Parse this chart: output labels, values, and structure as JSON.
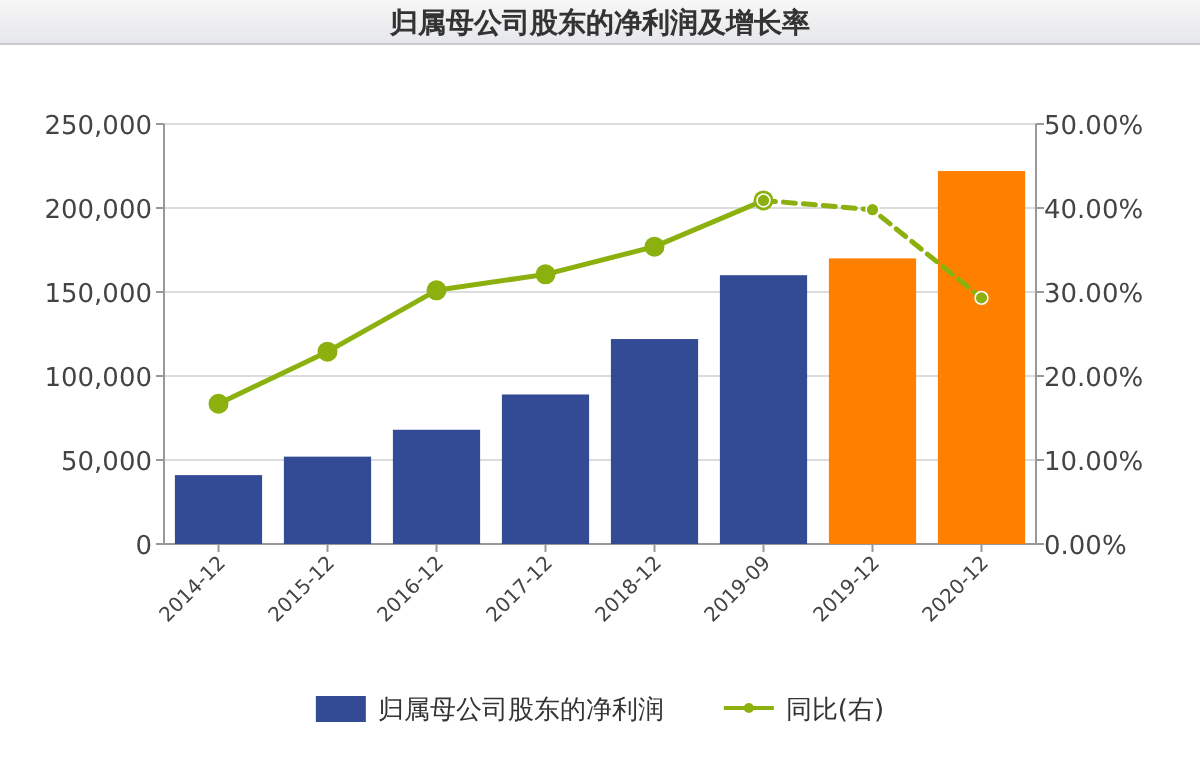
{
  "chart_data": {
    "type": "bar",
    "title": "归属母公司股东的净利润及增长率",
    "categories": [
      "2014-12",
      "2015-12",
      "2016-12",
      "2017-12",
      "2018-12",
      "2019-09",
      "2019-12",
      "2020-12"
    ],
    "series": [
      {
        "name": "归属母公司股东的净利润",
        "color": "#334a94",
        "colors": [
          "#334a94",
          "#334a94",
          "#334a94",
          "#334a94",
          "#334a94",
          "#334a94",
          "#ff7f00",
          "#ff7f00"
        ],
        "values": [
          41000,
          52000,
          68000,
          89000,
          122000,
          160000,
          170000,
          222000
        ]
      },
      {
        "name": "同比(右)",
        "type": "line",
        "axis": "y2",
        "color": "#8cb10f",
        "marker": "circle",
        "line_style": "solid",
        "values": [
          16.7,
          22.9,
          30.2,
          32.1,
          35.4,
          40.9,
          null,
          null
        ]
      },
      {
        "type": "line",
        "axis": "y2",
        "color": "#8cb10f",
        "marker": "circle",
        "line_style": "dashed",
        "values": [
          null,
          null,
          null,
          null,
          null,
          40.9,
          39.8,
          29.3
        ]
      }
    ],
    "ylim": [
      0,
      250000
    ],
    "yticks": [
      0,
      {
        "value": 50000,
        "label": "50,000"
      },
      {
        "value": 100000,
        "label": "100,000"
      },
      {
        "value": 150000,
        "label": "150,000"
      },
      {
        "value": 200000,
        "label": "200,000"
      },
      {
        "value": 250000,
        "label": "250,000"
      }
    ],
    "y2lim": [
      0,
      50
    ],
    "y2ticks": [
      {
        "value": 0,
        "label": "0.00%"
      },
      {
        "value": 10,
        "label": "10.00%"
      },
      {
        "value": 20,
        "label": "20.00%"
      },
      {
        "value": 30,
        "label": "30.00%"
      },
      {
        "value": 40,
        "label": "40.00%"
      },
      {
        "value": 50,
        "label": "50.00%"
      }
    ],
    "grid": "y",
    "legend": "bottom"
  }
}
